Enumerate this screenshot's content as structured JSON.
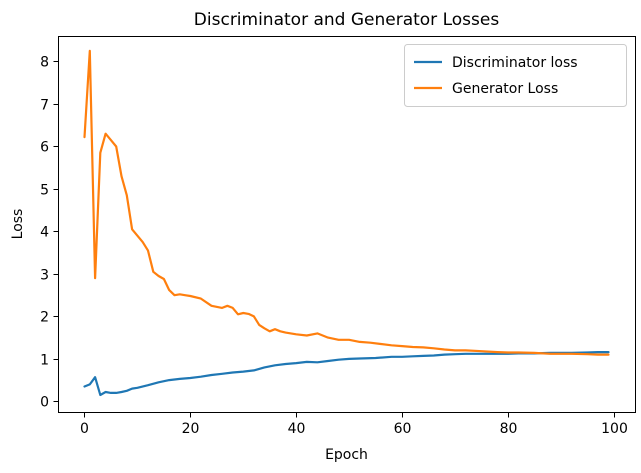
{
  "chart_data": {
    "type": "line",
    "title": "Discriminator and Generator Losses",
    "xlabel": "Epoch",
    "ylabel": "Loss",
    "xlim": [
      -5,
      104
    ],
    "ylim": [
      -0.25,
      8.6
    ],
    "xticks": [
      0,
      20,
      40,
      60,
      80,
      100
    ],
    "yticks": [
      0,
      1,
      2,
      3,
      4,
      5,
      6,
      7,
      8
    ],
    "grid": false,
    "legend_position": "top-right",
    "series": [
      {
        "name": "Discriminator loss",
        "color": "#1f77b4",
        "x": [
          0,
          1,
          2,
          3,
          4,
          5,
          6,
          7,
          8,
          9,
          10,
          12,
          14,
          16,
          18,
          20,
          22,
          24,
          26,
          28,
          30,
          32,
          34,
          36,
          38,
          40,
          42,
          44,
          46,
          48,
          50,
          52,
          55,
          58,
          60,
          62,
          64,
          66,
          68,
          70,
          72,
          75,
          78,
          80,
          82,
          85,
          88,
          90,
          92,
          95,
          97,
          99
        ],
        "y": [
          0.35,
          0.4,
          0.57,
          0.15,
          0.22,
          0.2,
          0.2,
          0.22,
          0.25,
          0.3,
          0.32,
          0.38,
          0.45,
          0.5,
          0.53,
          0.55,
          0.58,
          0.62,
          0.65,
          0.68,
          0.7,
          0.73,
          0.8,
          0.85,
          0.88,
          0.9,
          0.93,
          0.92,
          0.95,
          0.98,
          1.0,
          1.01,
          1.02,
          1.05,
          1.05,
          1.06,
          1.07,
          1.08,
          1.1,
          1.11,
          1.12,
          1.12,
          1.12,
          1.12,
          1.13,
          1.13,
          1.14,
          1.14,
          1.14,
          1.15,
          1.16,
          1.16
        ]
      },
      {
        "name": "Generator Loss",
        "color": "#ff7f0e",
        "x": [
          0,
          1,
          2,
          3,
          4,
          5,
          6,
          7,
          8,
          9,
          10,
          11,
          12,
          13,
          14,
          15,
          16,
          17,
          18,
          19,
          20,
          22,
          24,
          26,
          27,
          28,
          29,
          30,
          31,
          32,
          33,
          34,
          35,
          36,
          37,
          38,
          40,
          42,
          44,
          46,
          48,
          50,
          52,
          54,
          56,
          58,
          60,
          62,
          64,
          66,
          68,
          70,
          72,
          75,
          78,
          80,
          82,
          85,
          88,
          90,
          92,
          95,
          97,
          99
        ],
        "y": [
          6.22,
          8.25,
          2.9,
          5.85,
          6.3,
          6.15,
          6.0,
          5.3,
          4.85,
          4.05,
          3.9,
          3.75,
          3.55,
          3.05,
          2.95,
          2.88,
          2.62,
          2.5,
          2.52,
          2.5,
          2.48,
          2.42,
          2.25,
          2.2,
          2.25,
          2.2,
          2.05,
          2.08,
          2.06,
          2.0,
          1.8,
          1.72,
          1.65,
          1.7,
          1.65,
          1.62,
          1.58,
          1.55,
          1.6,
          1.5,
          1.45,
          1.45,
          1.4,
          1.38,
          1.35,
          1.32,
          1.3,
          1.28,
          1.27,
          1.25,
          1.22,
          1.2,
          1.2,
          1.18,
          1.16,
          1.15,
          1.15,
          1.14,
          1.12,
          1.12,
          1.12,
          1.11,
          1.1,
          1.1
        ]
      }
    ]
  }
}
